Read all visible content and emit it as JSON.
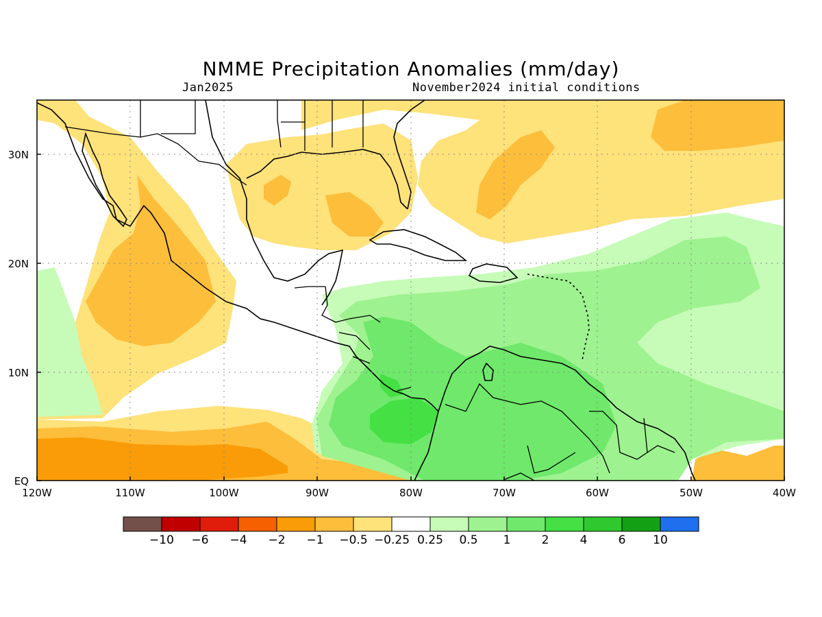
{
  "title": "NMME Precipitation Anomalies (mm/day)",
  "subtitle_left": "Jan2025",
  "subtitle_right": "November2024 initial conditions",
  "map": {
    "lon_range": [
      "120W",
      "40W"
    ],
    "lat_range": [
      "EQ",
      "35N"
    ],
    "grid": "dotted",
    "regions": [
      "North America",
      "Central America",
      "Caribbean",
      "South America"
    ]
  },
  "axes": {
    "x_ticks": [
      "120W",
      "110W",
      "100W",
      "90W",
      "80W",
      "70W",
      "60W",
      "50W",
      "40W"
    ],
    "y_ticks": [
      "EQ",
      "10N",
      "20N",
      "30N"
    ]
  },
  "colorbar": {
    "colors": [
      "#74504a",
      "#c00000",
      "#e01d0a",
      "#f76000",
      "#fa9c07",
      "#fdbe3b",
      "#fee27a",
      "#ffffff",
      "#c6fcb8",
      "#9ef28f",
      "#6fe86b",
      "#44e044",
      "#2fc82f",
      "#14a014",
      "#1f6fef"
    ],
    "labels": [
      "−10",
      "−6",
      "−4",
      "−2",
      "−1",
      "−0.5",
      "−0.25",
      "0.25",
      "0.5",
      "1",
      "2",
      "4",
      "6",
      "10"
    ]
  }
}
